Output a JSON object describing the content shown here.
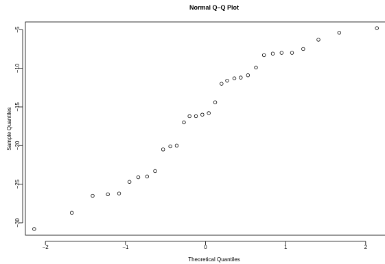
{
  "chart_data": {
    "type": "scatter",
    "title": "Normal Q–Q Plot",
    "xlabel": "Theoretical Quantiles",
    "ylabel": "Sample Quantiles",
    "xlim": [
      -2.25,
      2.25
    ],
    "ylim": [
      -31.6,
      -4.0
    ],
    "xticks": [
      -2,
      -1,
      0,
      1,
      2
    ],
    "xtick_labels": [
      "−2",
      "−1",
      "0",
      "1",
      "2"
    ],
    "yticks": [
      -30,
      -25,
      -20,
      -15,
      -10,
      -5
    ],
    "ytick_labels": [
      "−30",
      "−25",
      "−20",
      "−15",
      "−10",
      "−5"
    ],
    "grid": false,
    "points": [
      {
        "x": -2.14,
        "y": -30.8
      },
      {
        "x": -1.67,
        "y": -28.7
      },
      {
        "x": -1.41,
        "y": -26.5
      },
      {
        "x": -1.22,
        "y": -26.3
      },
      {
        "x": -1.08,
        "y": -26.2
      },
      {
        "x": -0.95,
        "y": -24.7
      },
      {
        "x": -0.84,
        "y": -24.1
      },
      {
        "x": -0.73,
        "y": -24.0
      },
      {
        "x": -0.63,
        "y": -23.3
      },
      {
        "x": -0.53,
        "y": -20.5
      },
      {
        "x": -0.44,
        "y": -20.1
      },
      {
        "x": -0.36,
        "y": -20.0
      },
      {
        "x": -0.27,
        "y": -17.0
      },
      {
        "x": -0.2,
        "y": -16.2
      },
      {
        "x": -0.12,
        "y": -16.2
      },
      {
        "x": -0.04,
        "y": -16.0
      },
      {
        "x": 0.04,
        "y": -15.8
      },
      {
        "x": 0.12,
        "y": -14.4
      },
      {
        "x": 0.2,
        "y": -12.0
      },
      {
        "x": 0.27,
        "y": -11.6
      },
      {
        "x": 0.36,
        "y": -11.3
      },
      {
        "x": 0.44,
        "y": -11.2
      },
      {
        "x": 0.53,
        "y": -10.9
      },
      {
        "x": 0.63,
        "y": -9.9
      },
      {
        "x": 0.73,
        "y": -8.3
      },
      {
        "x": 0.84,
        "y": -8.1
      },
      {
        "x": 0.95,
        "y": -8.0
      },
      {
        "x": 1.08,
        "y": -8.0
      },
      {
        "x": 1.22,
        "y": -7.5
      },
      {
        "x": 1.41,
        "y": -6.3
      },
      {
        "x": 1.67,
        "y": -5.4
      },
      {
        "x": 2.14,
        "y": -4.8
      }
    ]
  }
}
